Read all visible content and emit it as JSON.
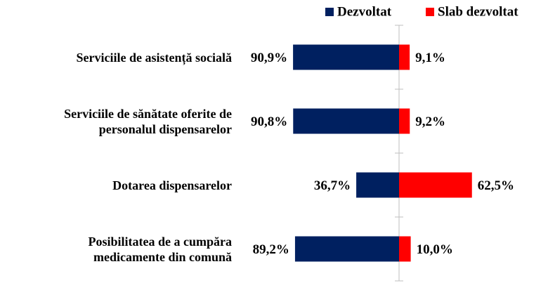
{
  "chart_data": {
    "type": "diverging-bar",
    "categories": [
      "Serviciile de asistență socială",
      "Serviciile de sănătate oferite de\npersonalul dispensarelor",
      "Dotarea dispensarelor",
      "Posibilitatea de a cumpăra\nmedicamente din comună"
    ],
    "series": [
      {
        "name": "Dezvoltat",
        "color": "#002060",
        "values": [
          90.9,
          90.8,
          36.7,
          89.2
        ],
        "value_labels": [
          "90,9%",
          "90,8%",
          "36,7%",
          "89,2%"
        ]
      },
      {
        "name": "Slab dezvoltat",
        "color": "#ff0000",
        "values": [
          9.1,
          9.2,
          62.5,
          10.0
        ],
        "value_labels": [
          "9,1%",
          "9,2%",
          "62,5%",
          "10,0%"
        ]
      }
    ],
    "legend": "top-right"
  }
}
